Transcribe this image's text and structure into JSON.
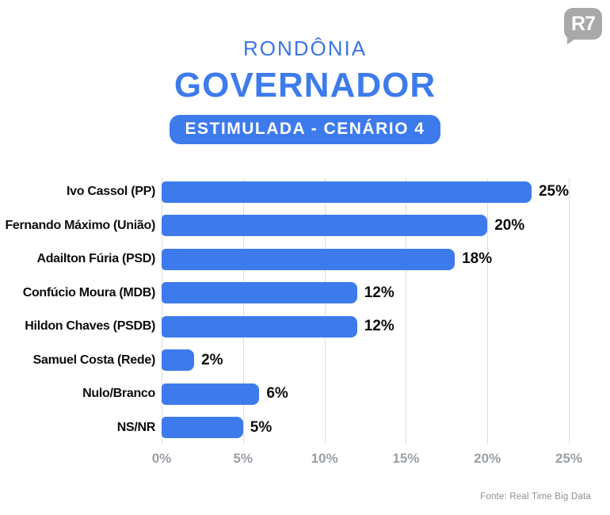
{
  "logo": {
    "text": "R7"
  },
  "header": {
    "region": "RONDÔNIA",
    "title": "GOVERNADOR",
    "badge": "ESTIMULADA - CENÁRIO 4"
  },
  "chart_data": {
    "type": "bar",
    "orientation": "horizontal",
    "title": "GOVERNADOR - RONDÔNIA - ESTIMULADA - CENÁRIO 4",
    "categories": [
      "Ivo Cassol (PP)",
      "Fernando Máximo (União)",
      "Adailton Fúria (PSD)",
      "Confúcio Moura (MDB)",
      "Hildon Chaves (PSDB)",
      "Samuel Costa (Rede)",
      "Nulo/Branco",
      "NS/NR"
    ],
    "values": [
      25,
      20,
      18,
      12,
      12,
      2,
      6,
      5
    ],
    "value_labels": [
      "25%",
      "20%",
      "18%",
      "12%",
      "12%",
      "2%",
      "6%",
      "5%"
    ],
    "x_ticks": [
      "0%",
      "5%",
      "10%",
      "15%",
      "20%",
      "25%"
    ],
    "x_tick_values": [
      0,
      5,
      10,
      15,
      20,
      25
    ],
    "xlim": [
      0,
      25
    ],
    "grid": true,
    "bar_color": "#3d7bec"
  },
  "footer": {
    "source": "Fonte: Real Time Big Data"
  },
  "colors": {
    "accent": "#3d7bec",
    "region_text": "#3a74e8",
    "label_text": "#0d0d0d",
    "tick_text": "#9a9fa6",
    "grid_line": "#dcdcdc",
    "logo_gray": "#a9a9a9",
    "source_text": "#8f8f8f"
  }
}
